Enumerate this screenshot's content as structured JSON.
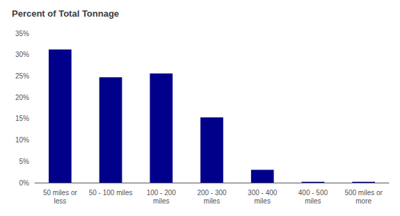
{
  "chart_data": {
    "type": "bar",
    "title": "Percent of Total Tonnage",
    "categories": [
      "50 miles or\nless",
      "50 - 100 miles",
      "100 - 200\nmiles",
      "200 - 300\nmiles",
      "300 - 400\nmiles",
      "400 - 500\nmiles",
      "500 miles or\nmore"
    ],
    "values": [
      31.2,
      24.7,
      25.6,
      15.3,
      3.0,
      0.2,
      0.2
    ],
    "color": "#00008B",
    "ylim": [
      0,
      35
    ],
    "yticks": [
      {
        "value": 0,
        "label": "0%"
      },
      {
        "value": 5,
        "label": "5%"
      },
      {
        "value": 10,
        "label": "10%"
      },
      {
        "value": 15,
        "label": "15%"
      },
      {
        "value": 20,
        "label": "20%"
      },
      {
        "value": 25,
        "label": "25%"
      },
      {
        "value": 30,
        "label": "30%"
      },
      {
        "value": 35,
        "label": "35%"
      }
    ],
    "grid": false
  }
}
